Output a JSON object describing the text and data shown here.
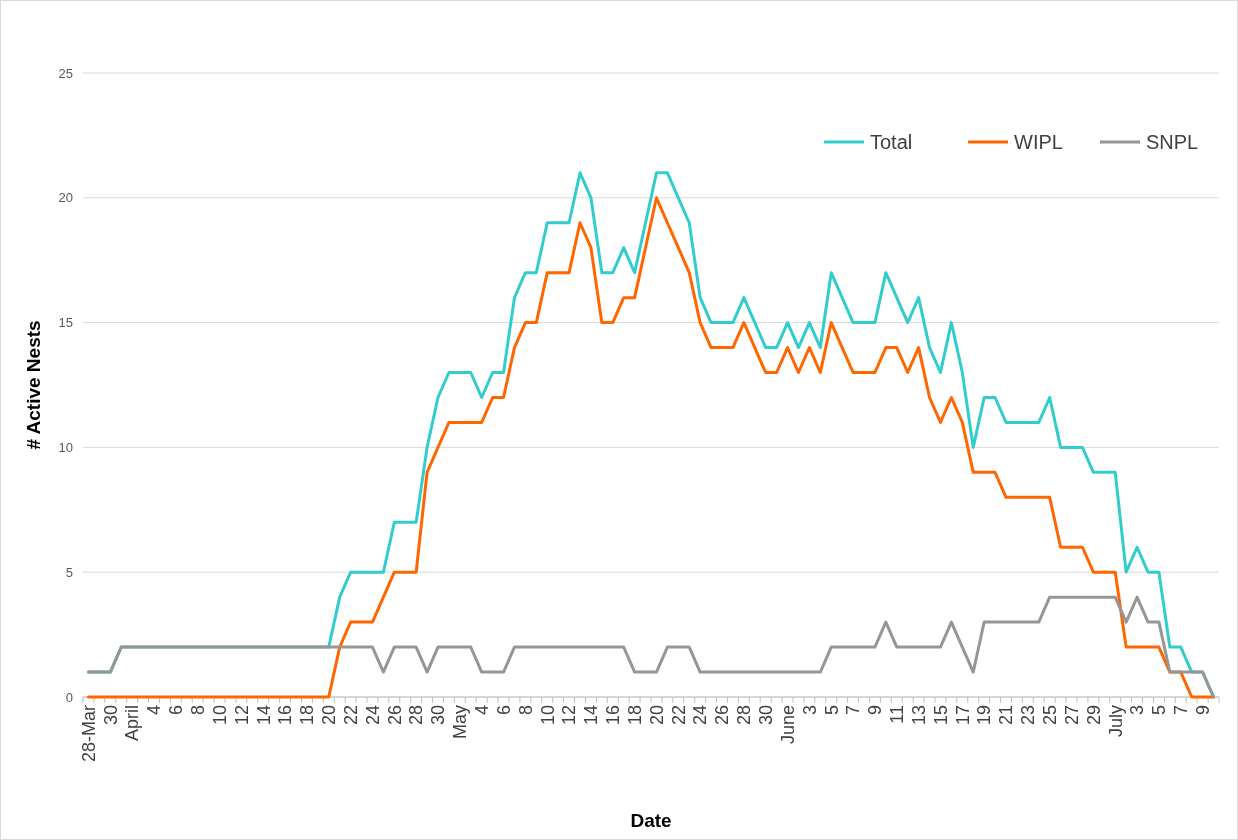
{
  "chart_data": {
    "type": "line",
    "xlabel": "Date",
    "ylabel": "# Active Nests",
    "categories": [
      "28-Mar",
      null,
      "30",
      null,
      "April",
      null,
      "4",
      null,
      "6",
      null,
      "8",
      null,
      "10",
      null,
      "12",
      null,
      "14",
      null,
      "16",
      null,
      "18",
      null,
      "20",
      null,
      "22",
      null,
      "24",
      null,
      "26",
      null,
      "28",
      null,
      "30",
      null,
      "May",
      null,
      "4",
      null,
      "6",
      null,
      "8",
      null,
      "10",
      null,
      "12",
      null,
      "14",
      null,
      "16",
      null,
      "18",
      null,
      "20",
      null,
      "22",
      null,
      "24",
      null,
      "26",
      null,
      "28",
      null,
      "30",
      null,
      "June",
      null,
      "3",
      null,
      "5",
      null,
      "7",
      null,
      "9",
      null,
      "11",
      null,
      "13",
      null,
      "15",
      null,
      "17",
      null,
      "19",
      null,
      "21",
      null,
      "23",
      null,
      "25",
      null,
      "27",
      null,
      "29",
      null,
      "July",
      null,
      "3",
      null,
      "5",
      null,
      "7",
      null,
      "9",
      null
    ],
    "series": [
      {
        "name": "Total",
        "color": "#33cccc",
        "values": [
          1,
          1,
          1,
          2,
          2,
          2,
          2,
          2,
          2,
          2,
          2,
          2,
          2,
          2,
          2,
          2,
          2,
          2,
          2,
          2,
          2,
          2,
          2,
          4,
          5,
          5,
          5,
          5,
          7,
          7,
          7,
          10,
          12,
          13,
          13,
          13,
          12,
          13,
          13,
          16,
          17,
          17,
          19,
          19,
          19,
          21,
          20,
          17,
          17,
          18,
          17,
          19,
          21,
          21,
          20,
          19,
          16,
          15,
          15,
          15,
          16,
          15,
          14,
          14,
          15,
          14,
          15,
          14,
          17,
          16,
          15,
          15,
          15,
          17,
          16,
          15,
          16,
          14,
          13,
          15,
          13,
          10,
          12,
          12,
          11,
          11,
          11,
          11,
          12,
          10,
          10,
          10,
          9,
          9,
          9,
          5,
          6,
          5,
          5,
          2,
          2,
          1,
          1,
          0
        ]
      },
      {
        "name": "WIPL",
        "color": "#ff6600",
        "values": [
          0,
          0,
          0,
          0,
          0,
          0,
          0,
          0,
          0,
          0,
          0,
          0,
          0,
          0,
          0,
          0,
          0,
          0,
          0,
          0,
          0,
          0,
          0,
          2,
          3,
          3,
          3,
          4,
          5,
          5,
          5,
          9,
          10,
          11,
          11,
          11,
          11,
          12,
          12,
          14,
          15,
          15,
          17,
          17,
          17,
          19,
          18,
          15,
          15,
          16,
          16,
          18,
          20,
          19,
          18,
          17,
          15,
          14,
          14,
          14,
          15,
          14,
          13,
          13,
          14,
          13,
          14,
          13,
          15,
          14,
          13,
          13,
          13,
          14,
          14,
          13,
          14,
          12,
          11,
          12,
          11,
          9,
          9,
          9,
          8,
          8,
          8,
          8,
          8,
          6,
          6,
          6,
          5,
          5,
          5,
          2,
          2,
          2,
          2,
          1,
          1,
          0,
          0,
          0
        ]
      },
      {
        "name": "SNPL",
        "color": "#969696",
        "values": [
          1,
          1,
          1,
          2,
          2,
          2,
          2,
          2,
          2,
          2,
          2,
          2,
          2,
          2,
          2,
          2,
          2,
          2,
          2,
          2,
          2,
          2,
          2,
          2,
          2,
          2,
          2,
          1,
          2,
          2,
          2,
          1,
          2,
          2,
          2,
          2,
          1,
          1,
          1,
          2,
          2,
          2,
          2,
          2,
          2,
          2,
          2,
          2,
          2,
          2,
          1,
          1,
          1,
          2,
          2,
          2,
          1,
          1,
          1,
          1,
          1,
          1,
          1,
          1,
          1,
          1,
          1,
          1,
          2,
          2,
          2,
          2,
          2,
          3,
          2,
          2,
          2,
          2,
          2,
          3,
          2,
          1,
          3,
          3,
          3,
          3,
          3,
          3,
          4,
          4,
          4,
          4,
          4,
          4,
          4,
          3,
          4,
          3,
          3,
          1,
          1,
          1,
          1,
          0
        ]
      }
    ],
    "ylim": [
      0,
      25
    ],
    "yticks": [
      0,
      5,
      10,
      15,
      20,
      25
    ],
    "grid": "y",
    "legend": "top right",
    "marker": "none",
    "line_style": "solid"
  }
}
